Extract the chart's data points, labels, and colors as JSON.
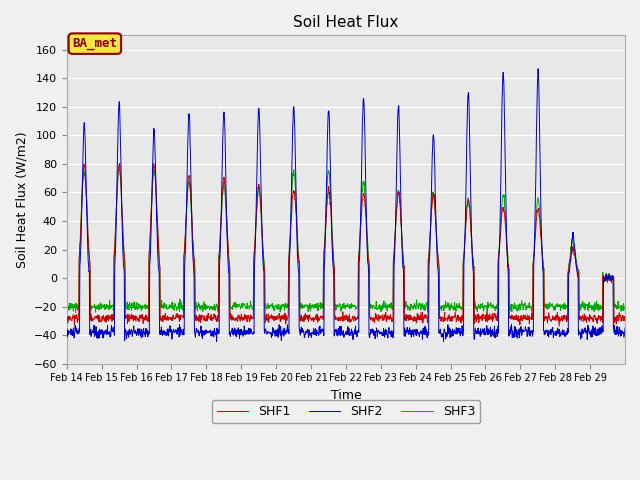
{
  "title": "Soil Heat Flux",
  "ylabel": "Soil Heat Flux (W/m2)",
  "xlabel": "Time",
  "ylim": [
    -60,
    170
  ],
  "yticks": [
    -60,
    -40,
    -20,
    0,
    20,
    40,
    60,
    80,
    100,
    120,
    140,
    160
  ],
  "fig_bg": "#f0f0f0",
  "plot_bg": "#e8e8e8",
  "grid_color": "#ffffff",
  "legend_label": "BA_met",
  "legend_bg": "#f5e642",
  "legend_border": "#8b0000",
  "colors": {
    "SHF1": "#cc0000",
    "SHF2": "#0000cc",
    "SHF3": "#00aa00"
  },
  "date_labels": [
    "Feb 14",
    "Feb 15",
    "Feb 16",
    "Feb 17",
    "Feb 18",
    "Feb 19",
    "Feb 20",
    "Feb 21",
    "Feb 22",
    "Feb 23",
    "Feb 24",
    "Feb 25",
    "Feb 26",
    "Feb 27",
    "Feb 28",
    "Feb 29"
  ],
  "peaks_shf2": [
    108,
    123,
    105,
    115,
    116,
    121,
    120,
    119,
    128,
    120,
    100,
    130,
    143,
    145,
    30,
    0
  ],
  "peaks_shf1": [
    78,
    80,
    80,
    72,
    70,
    65,
    62,
    62,
    60,
    60,
    58,
    55,
    50,
    48,
    20,
    0
  ],
  "peaks_shf3": [
    75,
    78,
    75,
    68,
    65,
    62,
    75,
    75,
    68,
    60,
    58,
    56,
    58,
    55,
    25,
    0
  ],
  "n_days": 16,
  "pts_per_day": 96
}
